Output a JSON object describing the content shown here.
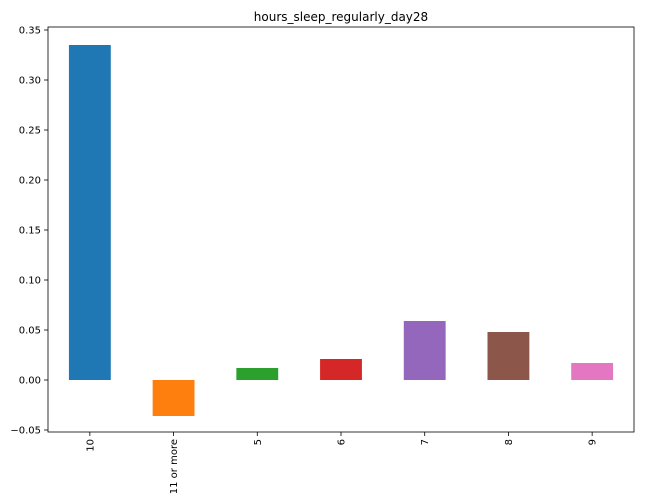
{
  "chart_data": {
    "type": "bar",
    "title": "hours_sleep_regularly_day28",
    "xlabel": "",
    "ylabel": "",
    "categories": [
      "10",
      "11 or more",
      "5",
      "6",
      "7",
      "8",
      "9"
    ],
    "values": [
      0.335,
      -0.036,
      0.012,
      0.021,
      0.059,
      0.048,
      0.017
    ],
    "colors": [
      "#1f77b4",
      "#ff7f0e",
      "#2ca02c",
      "#d62728",
      "#9467bd",
      "#8c564b",
      "#e377c2"
    ],
    "ylim": [
      -0.052,
      0.353
    ],
    "yticks": [
      -0.05,
      0.0,
      0.05,
      0.1,
      0.15,
      0.2,
      0.25,
      0.3,
      0.35
    ],
    "ytick_labels": [
      "−0.05",
      "0.00",
      "0.05",
      "0.10",
      "0.15",
      "0.20",
      "0.25",
      "0.30",
      "0.35"
    ],
    "grid": false,
    "legend": "none"
  }
}
